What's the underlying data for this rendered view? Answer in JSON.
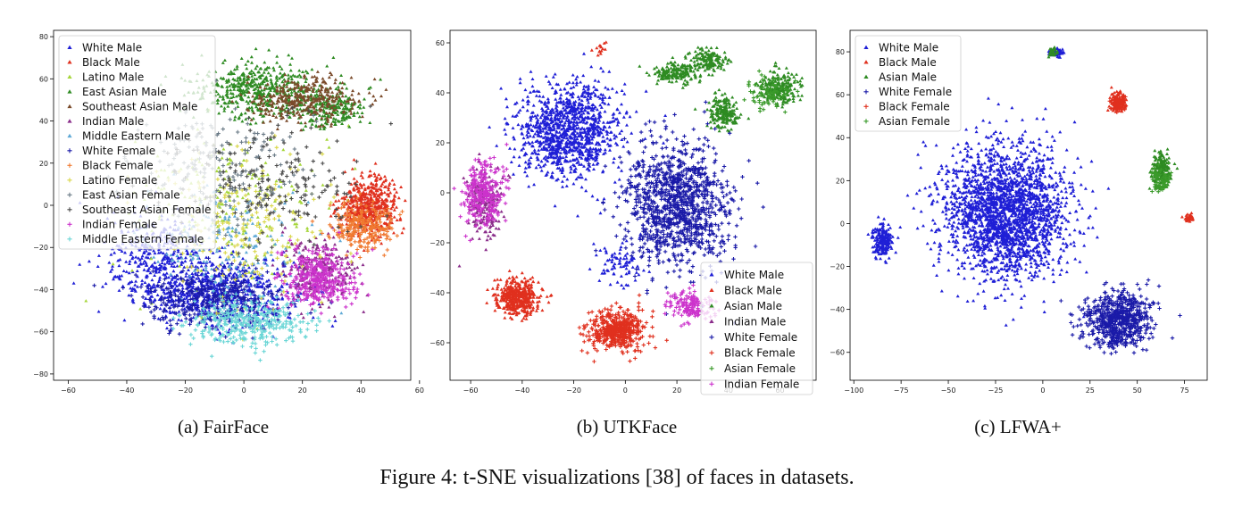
{
  "figure_caption": "Figure 4: t-SNE visualizations [38] of faces in datasets.",
  "chart_data": [
    {
      "type": "scatter",
      "caption": "(a) FairFace",
      "xlim": [
        -65,
        57
      ],
      "ylim": [
        -83,
        83
      ],
      "xticks": [
        -60,
        -40,
        -20,
        0,
        20,
        40,
        60
      ],
      "yticks": [
        -80,
        -60,
        -40,
        -20,
        0,
        20,
        40,
        60,
        80
      ],
      "legend_position": "upper-left",
      "series": [
        {
          "name": "White Male",
          "color": "#1f1fd6",
          "marker": "triangle",
          "clusters": [
            [
              -10,
              -40,
              25,
              15,
              700
            ],
            [
              -30,
              -25,
              15,
              18,
              300
            ]
          ]
        },
        {
          "name": "Black Male",
          "color": "#e0301e",
          "marker": "triangle",
          "clusters": [
            [
              43,
              0,
              9,
              12,
              500
            ]
          ]
        },
        {
          "name": "Latino Male",
          "color": "#a6d63a",
          "marker": "triangle",
          "clusters": [
            [
              -5,
              0,
              30,
              35,
              200
            ]
          ]
        },
        {
          "name": "East Asian Male",
          "color": "#2e8b22",
          "marker": "triangle",
          "clusters": [
            [
              5,
              55,
              20,
              12,
              500
            ],
            [
              30,
              45,
              12,
              8,
              200
            ]
          ]
        },
        {
          "name": "Southeast Asian Male",
          "color": "#7a4a2a",
          "marker": "triangle",
          "clusters": [
            [
              20,
              50,
              18,
              10,
              350
            ]
          ]
        },
        {
          "name": "Indian Male",
          "color": "#8a2d8a",
          "marker": "triangle",
          "clusters": [
            [
              25,
              -30,
              12,
              12,
              250
            ]
          ]
        },
        {
          "name": "Middle Eastern Male",
          "color": "#5fa9d6",
          "marker": "triangle",
          "clusters": [
            [
              -5,
              -20,
              25,
              25,
              200
            ]
          ]
        },
        {
          "name": "White Female",
          "color": "#1a1aa8",
          "marker": "plus",
          "clusters": [
            [
              -10,
              -45,
              22,
              12,
              400
            ]
          ]
        },
        {
          "name": "Black Female",
          "color": "#f07a30",
          "marker": "plus",
          "clusters": [
            [
              40,
              -10,
              10,
              10,
              250
            ]
          ]
        },
        {
          "name": "Latino Female",
          "color": "#d9d74a",
          "marker": "plus",
          "clusters": [
            [
              0,
              -10,
              25,
              30,
              200
            ]
          ]
        },
        {
          "name": "East Asian Female",
          "color": "#6a7a86",
          "marker": "plus",
          "clusters": [
            [
              -10,
              20,
              25,
              25,
              200
            ]
          ]
        },
        {
          "name": "Southeast Asian Female",
          "color": "#4a4a4a",
          "marker": "plus",
          "clusters": [
            [
              10,
              10,
              30,
              25,
              200
            ]
          ]
        },
        {
          "name": "Indian Female",
          "color": "#cc33cc",
          "marker": "plus",
          "clusters": [
            [
              25,
              -35,
              12,
              12,
              350
            ]
          ]
        },
        {
          "name": "Middle Eastern Female",
          "color": "#6ad6d6",
          "marker": "plus",
          "clusters": [
            [
              0,
              -55,
              18,
              10,
              350
            ]
          ]
        }
      ]
    },
    {
      "type": "scatter",
      "caption": "(b) UTKFace",
      "xlim": [
        -68,
        74
      ],
      "ylim": [
        -75,
        65
      ],
      "xticks": [
        -60,
        -40,
        -20,
        0,
        20,
        40,
        60
      ],
      "yticks": [
        -60,
        -40,
        -20,
        0,
        20,
        40,
        60
      ],
      "legend_position": "lower-right",
      "series": [
        {
          "name": "White Male",
          "color": "#1f1fd6",
          "marker": "triangle",
          "clusters": [
            [
              -22,
              25,
              18,
              17,
              1100
            ],
            [
              -3,
              -28,
              8,
              8,
              80
            ]
          ]
        },
        {
          "name": "Black Male",
          "color": "#e0301e",
          "marker": "triangle",
          "clusters": [
            [
              -42,
              -42,
              8,
              7,
              450
            ],
            [
              -10,
              58,
              3,
              3,
              15
            ]
          ]
        },
        {
          "name": "Asian Male",
          "color": "#2e8b22",
          "marker": "triangle",
          "clusters": [
            [
              20,
              48,
              8,
              4,
              180
            ],
            [
              32,
              53,
              6,
              4,
              150
            ],
            [
              60,
              42,
              7,
              6,
              220
            ],
            [
              38,
              32,
              5,
              6,
              200
            ]
          ]
        },
        {
          "name": "Indian Male",
          "color": "#8a2d8a",
          "marker": "triangle",
          "clusters": [
            [
              -55,
              -5,
              6,
              12,
              200
            ]
          ]
        },
        {
          "name": "White Female",
          "color": "#1a1aa8",
          "marker": "plus",
          "clusters": [
            [
              20,
              -5,
              18,
              22,
              1100
            ]
          ]
        },
        {
          "name": "Black Female",
          "color": "#e0301e",
          "marker": "plus",
          "clusters": [
            [
              -3,
              -55,
              10,
              7,
              500
            ]
          ]
        },
        {
          "name": "Asian Female",
          "color": "#3a9a2a",
          "marker": "plus",
          "clusters": [
            [
              55,
              40,
              8,
              6,
              80
            ]
          ]
        },
        {
          "name": "Indian Female",
          "color": "#cc33cc",
          "marker": "plus",
          "clusters": [
            [
              -55,
              0,
              7,
              12,
              280
            ],
            [
              25,
              -45,
              8,
              6,
              150
            ]
          ]
        }
      ]
    },
    {
      "type": "scatter",
      "caption": "(c) LFWA+",
      "xlim": [
        -102,
        87
      ],
      "ylim": [
        -73,
        90
      ],
      "xticks": [
        -100,
        -75,
        -50,
        -25,
        0,
        25,
        50,
        75
      ],
      "yticks": [
        -60,
        -40,
        -20,
        0,
        20,
        40,
        60,
        80
      ],
      "legend_position": "upper-left",
      "series": [
        {
          "name": "White Male",
          "color": "#1f1fd6",
          "marker": "triangle",
          "clusters": [
            [
              -20,
              5,
              30,
              28,
              2200
            ],
            [
              -85,
              -8,
              5,
              6,
              200
            ],
            [
              7,
              80,
              4,
              2,
              60
            ]
          ]
        },
        {
          "name": "Black Male",
          "color": "#e0301e",
          "marker": "triangle",
          "clusters": [
            [
              40,
              57,
              4,
              4,
              130
            ],
            [
              77,
              3,
              2,
              2,
              30
            ]
          ]
        },
        {
          "name": "Asian Male",
          "color": "#2e8b22",
          "marker": "triangle",
          "clusters": [
            [
              63,
              25,
              5,
              7,
              200
            ],
            [
              5,
              80,
              3,
              2,
              25
            ]
          ]
        },
        {
          "name": "White Female",
          "color": "#1a1aa8",
          "marker": "plus",
          "clusters": [
            [
              40,
              -45,
              16,
              12,
              650
            ]
          ]
        },
        {
          "name": "Black Female",
          "color": "#e0301e",
          "marker": "plus",
          "clusters": [
            [
              40,
              55,
              4,
              3,
              50
            ]
          ]
        },
        {
          "name": "Asian Female",
          "color": "#3a9a2a",
          "marker": "plus",
          "clusters": [
            [
              62,
              20,
              5,
              6,
              70
            ]
          ]
        }
      ]
    }
  ]
}
